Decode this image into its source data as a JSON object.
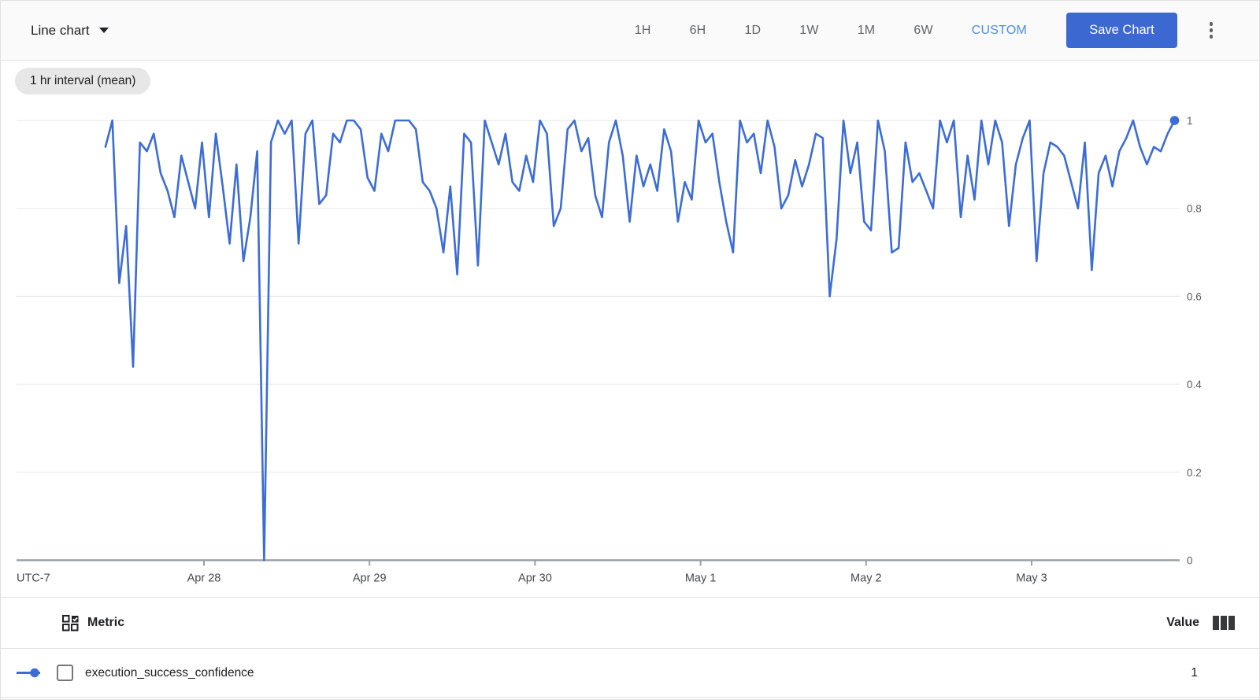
{
  "toolbar": {
    "chart_type_label": "Line chart",
    "ranges": [
      "1H",
      "6H",
      "1D",
      "1W",
      "1M",
      "6W",
      "CUSTOM"
    ],
    "active_range": "CUSTOM",
    "save_button_label": "Save Chart"
  },
  "chip_label": "1 hr interval (mean)",
  "colors": {
    "line_blue": "#3b6cd8",
    "save_bg": "#3c69d1",
    "custom_blue": "#4c8bf5",
    "grid": "#ebebeb",
    "axis": "#9aa0a6"
  },
  "chart_data": {
    "type": "line",
    "title": "",
    "interval_label": "1 hr interval (mean)",
    "y_axis": {
      "ticks": [
        1,
        0.8,
        0.6,
        0.4,
        0.2,
        0
      ],
      "range": [
        0,
        1
      ],
      "grid": true,
      "side": "right"
    },
    "x_axis": {
      "timezone_label": "UTC-7",
      "tick_labels": [
        "Apr 28",
        "Apr 29",
        "Apr 30",
        "May 1",
        "May 2",
        "May 3"
      ],
      "points_per_day": 24,
      "start_day_offset": -0.595
    },
    "legend_position": "bottom-table",
    "end_marker": true,
    "series": [
      {
        "name": "execution_success_confidence",
        "values": [
          0.94,
          1.0,
          0.63,
          0.76,
          0.44,
          0.95,
          0.93,
          0.97,
          0.88,
          0.84,
          0.78,
          0.92,
          0.86,
          0.8,
          0.95,
          0.78,
          0.97,
          0.85,
          0.72,
          0.9,
          0.68,
          0.78,
          0.93,
          0.0,
          0.95,
          1.0,
          0.97,
          1.0,
          0.72,
          0.97,
          1.0,
          0.81,
          0.83,
          0.97,
          0.95,
          1.0,
          1.0,
          0.98,
          0.87,
          0.84,
          0.97,
          0.93,
          1.0,
          1.0,
          1.0,
          0.98,
          0.86,
          0.84,
          0.8,
          0.7,
          0.85,
          0.65,
          0.97,
          0.95,
          0.67,
          1.0,
          0.95,
          0.9,
          0.97,
          0.86,
          0.84,
          0.92,
          0.86,
          1.0,
          0.97,
          0.76,
          0.8,
          0.98,
          1.0,
          0.93,
          0.96,
          0.83,
          0.78,
          0.95,
          1.0,
          0.92,
          0.77,
          0.92,
          0.85,
          0.9,
          0.84,
          0.98,
          0.93,
          0.77,
          0.86,
          0.82,
          1.0,
          0.95,
          0.97,
          0.86,
          0.77,
          0.7,
          1.0,
          0.95,
          0.97,
          0.88,
          1.0,
          0.94,
          0.8,
          0.83,
          0.91,
          0.85,
          0.9,
          0.97,
          0.96,
          0.6,
          0.73,
          1.0,
          0.88,
          0.95,
          0.77,
          0.75,
          1.0,
          0.93,
          0.7,
          0.71,
          0.95,
          0.86,
          0.88,
          0.84,
          0.8,
          1.0,
          0.95,
          1.0,
          0.78,
          0.92,
          0.82,
          1.0,
          0.9,
          1.0,
          0.95,
          0.76,
          0.9,
          0.96,
          1.0,
          0.68,
          0.88,
          0.95,
          0.94,
          0.92,
          0.86,
          0.8,
          0.95,
          0.66,
          0.88,
          0.92,
          0.85,
          0.93,
          0.96,
          1.0,
          0.94,
          0.9,
          0.94,
          0.93,
          0.97,
          1.0
        ]
      }
    ]
  },
  "table": {
    "metric_header": "Metric",
    "value_header": "Value",
    "rows": [
      {
        "metric": "execution_success_confidence",
        "value": "1",
        "checked": false
      }
    ]
  }
}
